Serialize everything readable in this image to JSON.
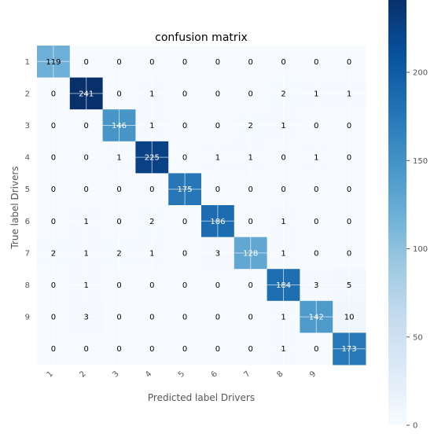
{
  "chart_data": {
    "type": "heatmap",
    "title": "confusion matrix",
    "xlabel": "Predicted label Drivers",
    "ylabel": "True label Drivers",
    "x_tick_labels": [
      "1",
      "2",
      "3",
      "4",
      "5",
      "6",
      "7",
      "8",
      "9",
      ""
    ],
    "y_tick_labels": [
      "1",
      "2",
      "3",
      "4",
      "5",
      "6",
      "7",
      "8",
      "9",
      ""
    ],
    "matrix": [
      [
        119,
        0,
        0,
        0,
        0,
        0,
        0,
        0,
        0,
        0
      ],
      [
        0,
        241,
        0,
        1,
        0,
        0,
        0,
        2,
        1,
        1
      ],
      [
        0,
        0,
        146,
        1,
        0,
        0,
        2,
        1,
        0,
        0
      ],
      [
        0,
        0,
        1,
        225,
        0,
        1,
        1,
        0,
        1,
        0
      ],
      [
        0,
        0,
        0,
        0,
        175,
        0,
        0,
        0,
        0,
        0
      ],
      [
        0,
        1,
        0,
        2,
        0,
        186,
        0,
        1,
        0,
        0
      ],
      [
        2,
        1,
        2,
        1,
        0,
        3,
        128,
        1,
        0,
        0
      ],
      [
        0,
        1,
        0,
        0,
        0,
        0,
        0,
        184,
        3,
        5
      ],
      [
        0,
        3,
        0,
        0,
        0,
        0,
        0,
        1,
        142,
        10
      ],
      [
        0,
        0,
        0,
        0,
        0,
        0,
        0,
        1,
        0,
        173
      ]
    ],
    "colormap": "Blues",
    "colorbar": {
      "min": 0,
      "max": 241,
      "ticks": [
        0,
        50,
        100,
        150,
        200
      ]
    },
    "grid": true
  }
}
